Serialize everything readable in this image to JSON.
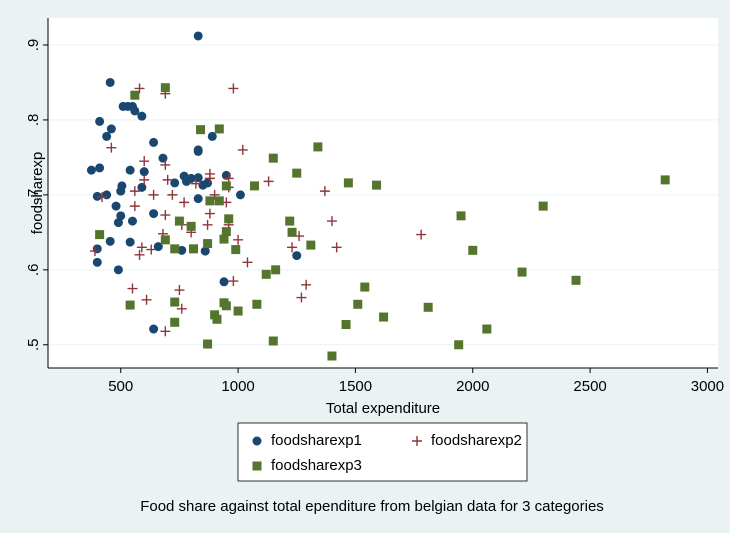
{
  "chart_data": {
    "type": "scatter",
    "caption": "Food share against total ependiture from belgian data for 3 categories",
    "x_label": "Total expenditure",
    "y_label": "foodsharexp",
    "xlim": [
      190,
      3045
    ],
    "ylim": [
      0.469,
      0.936
    ],
    "xticks": [
      500,
      1000,
      1500,
      2000,
      2500,
      3000
    ],
    "yticks": [
      {
        "value": 0.5,
        "label": ".5"
      },
      {
        "value": 0.6,
        "label": ".6"
      },
      {
        "value": 0.7,
        "label": ".7"
      },
      {
        "value": 0.8,
        "label": ".8"
      },
      {
        "value": 0.9,
        "label": ".9"
      }
    ],
    "grid": true,
    "series": [
      {
        "name": "foodsharexp1",
        "color": "#1a476f",
        "marker": "circle",
        "x": [
          830,
          455,
          410,
          440,
          460,
          510,
          530,
          550,
          560,
          590,
          640,
          680,
          730,
          770,
          800,
          830,
          830,
          830,
          890,
          950,
          1010,
          375,
          410,
          400,
          440,
          500,
          505,
          540,
          600,
          590,
          550,
          480,
          500,
          490,
          455,
          400,
          400,
          490,
          540,
          640,
          660,
          640,
          760,
          870,
          850,
          830,
          860,
          940,
          1250,
          780
        ],
        "values": [
          0.912,
          0.85,
          0.798,
          0.778,
          0.788,
          0.818,
          0.818,
          0.818,
          0.812,
          0.805,
          0.77,
          0.749,
          0.716,
          0.725,
          0.722,
          0.723,
          0.758,
          0.76,
          0.778,
          0.726,
          0.7,
          0.733,
          0.736,
          0.698,
          0.7,
          0.705,
          0.712,
          0.733,
          0.731,
          0.71,
          0.665,
          0.685,
          0.672,
          0.663,
          0.638,
          0.628,
          0.61,
          0.6,
          0.637,
          0.675,
          0.631,
          0.521,
          0.626,
          0.716,
          0.713,
          0.695,
          0.625,
          0.584,
          0.619,
          0.718
        ]
      },
      {
        "name": "foodsharexp2",
        "color": "#90353b",
        "marker": "plus",
        "x": [
          580,
          690,
          980,
          460,
          600,
          690,
          1020,
          1130,
          1370,
          420,
          560,
          600,
          640,
          700,
          720,
          770,
          820,
          880,
          880,
          900,
          960,
          960,
          560,
          690,
          880,
          950,
          390,
          580,
          590,
          630,
          680,
          760,
          800,
          870,
          960,
          1000,
          1230,
          1260,
          1400,
          1420,
          1780,
          550,
          610,
          750,
          760,
          690,
          1040,
          980,
          1290,
          1270
        ],
        "values": [
          0.842,
          0.835,
          0.842,
          0.763,
          0.745,
          0.74,
          0.76,
          0.718,
          0.705,
          0.697,
          0.705,
          0.72,
          0.7,
          0.72,
          0.7,
          0.69,
          0.715,
          0.728,
          0.722,
          0.7,
          0.722,
          0.71,
          0.685,
          0.673,
          0.675,
          0.69,
          0.625,
          0.62,
          0.63,
          0.627,
          0.648,
          0.66,
          0.65,
          0.66,
          0.66,
          0.64,
          0.63,
          0.645,
          0.665,
          0.63,
          0.647,
          0.575,
          0.56,
          0.573,
          0.548,
          0.518,
          0.61,
          0.585,
          0.58,
          0.563
        ]
      },
      {
        "name": "foodsharexp3",
        "color": "#55752f",
        "marker": "square",
        "x": [
          690,
          560,
          840,
          920,
          1340,
          1150,
          1250,
          1070,
          1470,
          1590,
          2820,
          2300,
          950,
          880,
          1950,
          1220,
          410,
          750,
          800,
          920,
          950,
          940,
          990,
          1230,
          1310,
          2000,
          690,
          730,
          810,
          870,
          960,
          1120,
          1160,
          1540,
          2210,
          2440,
          540,
          730,
          730,
          910,
          900,
          940,
          950,
          1000,
          1080,
          1510,
          1620,
          1810,
          1460,
          2060,
          870,
          1150,
          1400,
          1940
        ],
        "values": [
          0.843,
          0.833,
          0.787,
          0.788,
          0.764,
          0.749,
          0.729,
          0.712,
          0.716,
          0.713,
          0.72,
          0.685,
          0.712,
          0.692,
          0.672,
          0.665,
          0.647,
          0.665,
          0.658,
          0.692,
          0.651,
          0.641,
          0.627,
          0.65,
          0.633,
          0.626,
          0.64,
          0.628,
          0.628,
          0.635,
          0.668,
          0.594,
          0.6,
          0.577,
          0.597,
          0.586,
          0.553,
          0.557,
          0.53,
          0.534,
          0.54,
          0.556,
          0.552,
          0.545,
          0.554,
          0.554,
          0.537,
          0.55,
          0.527,
          0.521,
          0.501,
          0.505,
          0.485,
          0.5
        ]
      }
    ]
  }
}
